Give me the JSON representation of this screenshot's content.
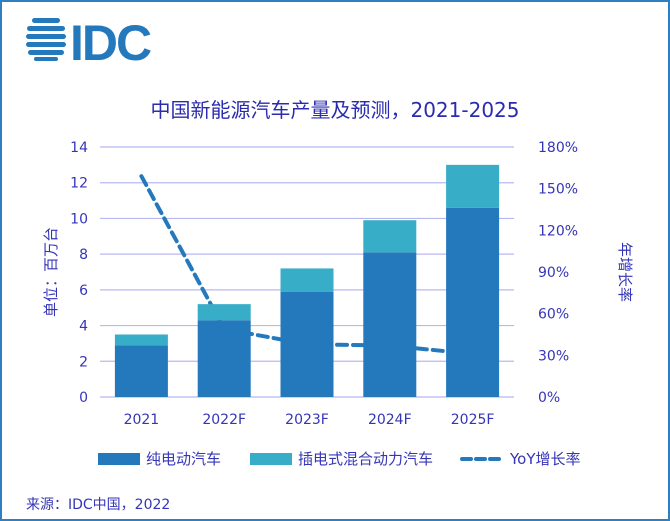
{
  "logo_text": "IDC",
  "colors": {
    "bev": "#2479bd",
    "phev": "#38adc7",
    "yoy": "#2479bd",
    "grid": "#b8b8f0",
    "text": "#3535b8",
    "border": "#2f7fc1"
  },
  "chart_data": {
    "type": "bar",
    "stacked": true,
    "title": "中国新能源汽车产量及预测，2021-2025",
    "ylabel": "单位：百万台",
    "y2label": "年增长率",
    "categories": [
      "2021",
      "2022F",
      "2023F",
      "2024F",
      "2025F"
    ],
    "ylim": [
      0,
      14
    ],
    "yticks": [
      "0",
      "2",
      "4",
      "6",
      "8",
      "10",
      "12",
      "14"
    ],
    "y2lim": [
      0,
      180
    ],
    "y2ticks": [
      "0%",
      "30%",
      "60%",
      "90%",
      "120%",
      "150%",
      "180%"
    ],
    "grid": true,
    "legend_position": "bottom",
    "series": [
      {
        "name": "纯电动汽车",
        "type": "bar",
        "values": [
          2.9,
          4.3,
          5.9,
          8.1,
          10.6
        ]
      },
      {
        "name": "插电式混合动力汽车",
        "type": "bar",
        "values": [
          0.6,
          0.9,
          1.3,
          1.8,
          2.4
        ]
      },
      {
        "name": "YoY增长率",
        "type": "line",
        "style": "dashed",
        "axis": "right",
        "values": [
          159,
          49,
          38,
          37,
          31
        ]
      }
    ]
  },
  "source": "来源：IDC中国，2022"
}
